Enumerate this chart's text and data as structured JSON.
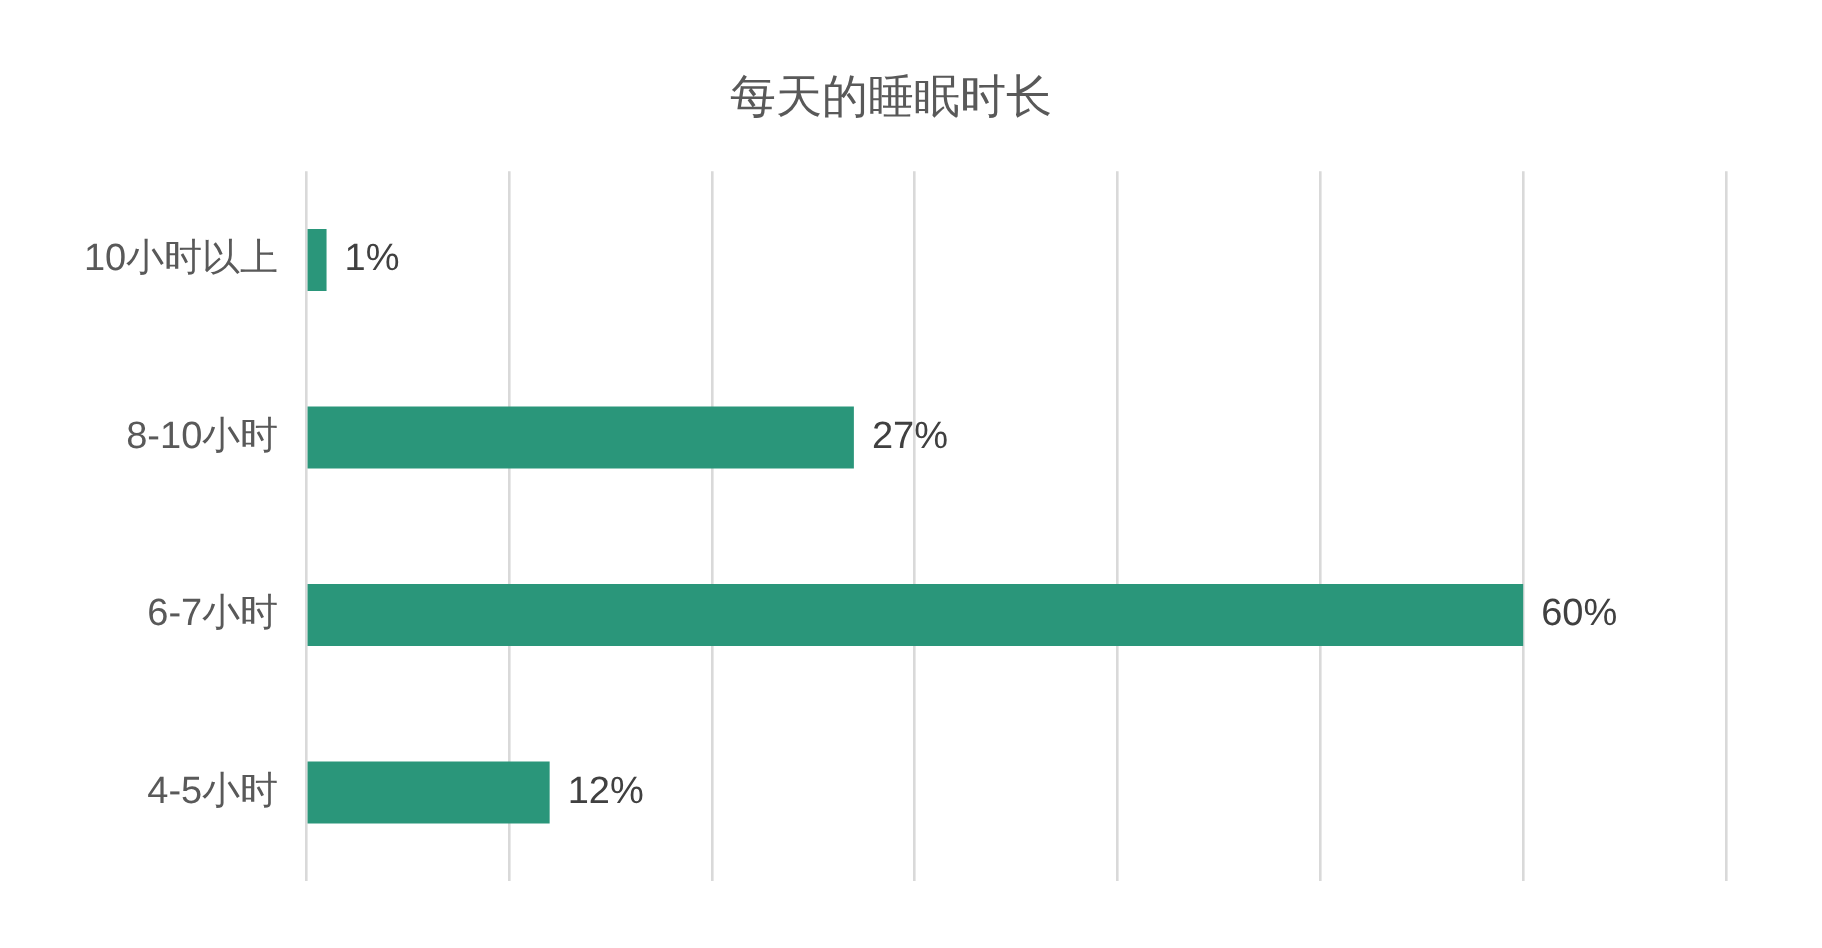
{
  "chart_data": {
    "type": "bar",
    "orientation": "horizontal",
    "title": "每天的睡眠时长",
    "categories": [
      "10小时以上",
      "8-10小时",
      "6-7小时",
      "4-5小时"
    ],
    "values": [
      1,
      27,
      60,
      12
    ],
    "value_labels": [
      "1%",
      "27%",
      "60%",
      "12%"
    ],
    "color": "#2a967a",
    "xlim": [
      0,
      70
    ],
    "xticks": [
      {
        "value": 0,
        "label": null
      },
      {
        "value": 10,
        "label": null
      },
      {
        "value": 20,
        "label": null
      },
      {
        "value": 30,
        "label": null
      },
      {
        "value": 40,
        "label": null
      },
      {
        "value": 50,
        "label": null
      },
      {
        "value": 60,
        "label": null
      },
      {
        "value": 70,
        "label": null
      }
    ],
    "grid": "x",
    "tick_labels": "y",
    "legend": false
  }
}
